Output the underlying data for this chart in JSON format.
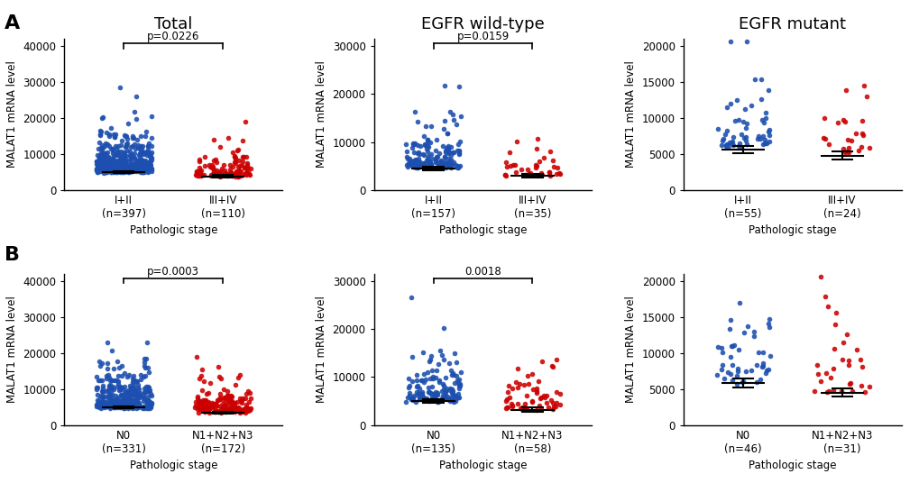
{
  "panels": [
    {
      "row": 0,
      "col": 0,
      "title": "Total",
      "ylabel": "MALAT1 mRNA level",
      "xlabel": "Pathologic stage",
      "groups": [
        {
          "label": "I+II",
          "n": 397,
          "color": "#1c4faf",
          "mean": 5000,
          "sem": 300
        },
        {
          "label": "III+IV",
          "n": 110,
          "color": "#cc0000",
          "mean": 3800,
          "sem": 350
        }
      ],
      "pvalue": "p=0.0226",
      "ylim": [
        0,
        42000
      ],
      "yticks": [
        0,
        10000,
        20000,
        30000,
        40000
      ]
    },
    {
      "row": 0,
      "col": 1,
      "title": "EGFR wild-type",
      "ylabel": "MALAT1 mRNA level",
      "xlabel": "Pathologic stage",
      "groups": [
        {
          "label": "I+II",
          "n": 157,
          "color": "#1c4faf",
          "mean": 4500,
          "sem": 400
        },
        {
          "label": "III+IV",
          "n": 35,
          "color": "#cc0000",
          "mean": 3000,
          "sem": 400
        }
      ],
      "pvalue": "p=0.0159",
      "ylim": [
        0,
        31500
      ],
      "yticks": [
        0,
        10000,
        20000,
        30000
      ]
    },
    {
      "row": 0,
      "col": 2,
      "title": "EGFR mutant",
      "ylabel": "MALAT1 mRNA level",
      "xlabel": "Pathologic stage",
      "groups": [
        {
          "label": "I+II",
          "n": 55,
          "color": "#1c4faf",
          "mean": 5600,
          "sem": 500
        },
        {
          "label": "III+IV",
          "n": 24,
          "color": "#cc0000",
          "mean": 4800,
          "sem": 600
        }
      ],
      "pvalue": null,
      "ylim": [
        0,
        21000
      ],
      "yticks": [
        0,
        5000,
        10000,
        15000,
        20000
      ]
    },
    {
      "row": 1,
      "col": 0,
      "title": null,
      "ylabel": "MALAT1 mRNA level",
      "xlabel": "Pathologic stage",
      "groups": [
        {
          "label": "N0",
          "n": 331,
          "color": "#1c4faf",
          "mean": 5000,
          "sem": 280
        },
        {
          "label": "N1+N2+N3",
          "n": 172,
          "color": "#cc0000",
          "mean": 3500,
          "sem": 280
        }
      ],
      "pvalue": "p=0.0003",
      "ylim": [
        0,
        42000
      ],
      "yticks": [
        0,
        10000,
        20000,
        30000,
        40000
      ]
    },
    {
      "row": 1,
      "col": 1,
      "title": null,
      "ylabel": "MALAT1 mRNA level",
      "xlabel": "Pathologic stage",
      "groups": [
        {
          "label": "N0",
          "n": 135,
          "color": "#1c4faf",
          "mean": 5000,
          "sem": 400
        },
        {
          "label": "N1+N2+N3",
          "n": 58,
          "color": "#cc0000",
          "mean": 3200,
          "sem": 400
        }
      ],
      "pvalue": "0.0018",
      "ylim": [
        0,
        31500
      ],
      "yticks": [
        0,
        10000,
        20000,
        30000
      ]
    },
    {
      "row": 1,
      "col": 2,
      "title": null,
      "ylabel": "MALAT1 mRNA level",
      "xlabel": "Pathologic stage",
      "groups": [
        {
          "label": "N0",
          "n": 46,
          "color": "#1c4faf",
          "mean": 5800,
          "sem": 600
        },
        {
          "label": "N1+N2+N3",
          "n": 31,
          "color": "#cc0000",
          "mean": 4500,
          "sem": 600
        }
      ],
      "pvalue": null,
      "ylim": [
        0,
        21000
      ],
      "yticks": [
        0,
        5000,
        10000,
        15000,
        20000
      ]
    }
  ],
  "col_titles": [
    "Total",
    "EGFR wild-type",
    "EGFR mutant"
  ],
  "background_color": "#ffffff",
  "dot_size": 16,
  "alpha": 0.88,
  "seed": 42
}
